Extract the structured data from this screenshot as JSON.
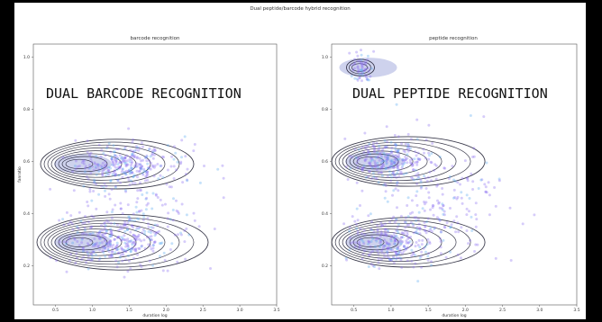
{
  "figure": {
    "suptitle": "Dual peptide/barcode hybrid recognition"
  },
  "colors": {
    "point": "#8a6cf0",
    "point_alt": "#5aa8f0",
    "contour": "#1a1a2e",
    "density_core": "#3a4ab8",
    "background": "#000000"
  },
  "chart_data": [
    {
      "type": "scatter",
      "title": "barcode recognition",
      "overlay_text": "DUAL BARCODE RECOGNITION",
      "xlabel": "duration log",
      "ylabel": "fanratio",
      "xlim": [
        0.2,
        3.5
      ],
      "ylim": [
        0.05,
        1.05
      ],
      "xticks": [
        "0.5",
        "1.0",
        "1.5",
        "2.0",
        "2.5",
        "3.0",
        "3.5"
      ],
      "yticks": [
        "0.2",
        "0.4",
        "0.6",
        "0.8",
        "1.0"
      ],
      "grid": false,
      "clusters": [
        {
          "x_center": 1.4,
          "y_center": 0.59,
          "x_spread": 0.55,
          "y_spread": 0.035,
          "count": 260
        },
        {
          "x_center": 1.3,
          "y_center": 0.29,
          "x_spread": 0.65,
          "y_spread": 0.045,
          "count": 300
        },
        {
          "x_center": 1.6,
          "y_center": 0.45,
          "x_spread": 0.9,
          "y_spread": 0.12,
          "count": 200
        }
      ],
      "contours": [
        {
          "x_center": 0.75,
          "y_center": 0.59,
          "levels": 8
        },
        {
          "x_center": 0.75,
          "y_center": 0.29,
          "levels": 9
        }
      ]
    },
    {
      "type": "scatter",
      "title": "peptide recognition",
      "overlay_text": "DUAL PEPTIDE RECOGNITION",
      "xlabel": "duration log",
      "ylabel": "",
      "xlim": [
        0.2,
        3.5
      ],
      "ylim": [
        0.05,
        1.05
      ],
      "xticks": [
        "0.5",
        "1.0",
        "1.5",
        "2.0",
        "2.5",
        "3.0",
        "3.5"
      ],
      "yticks": [
        "0.2",
        "0.4",
        "0.6",
        "0.8",
        "1.0"
      ],
      "grid": false,
      "clusters": [
        {
          "x_center": 0.95,
          "y_center": 0.6,
          "x_spread": 0.45,
          "y_spread": 0.04,
          "count": 260
        },
        {
          "x_center": 0.95,
          "y_center": 0.29,
          "x_spread": 0.5,
          "y_spread": 0.045,
          "count": 260
        },
        {
          "x_center": 0.6,
          "y_center": 0.96,
          "x_spread": 0.12,
          "y_spread": 0.03,
          "count": 60
        },
        {
          "x_center": 1.6,
          "y_center": 0.45,
          "x_spread": 0.85,
          "y_spread": 0.13,
          "count": 220
        }
      ],
      "contours": [
        {
          "x_center": 0.65,
          "y_center": 0.6,
          "levels": 8
        },
        {
          "x_center": 0.65,
          "y_center": 0.29,
          "levels": 8
        },
        {
          "x_center": 0.57,
          "y_center": 0.96,
          "levels": 3
        }
      ]
    }
  ]
}
